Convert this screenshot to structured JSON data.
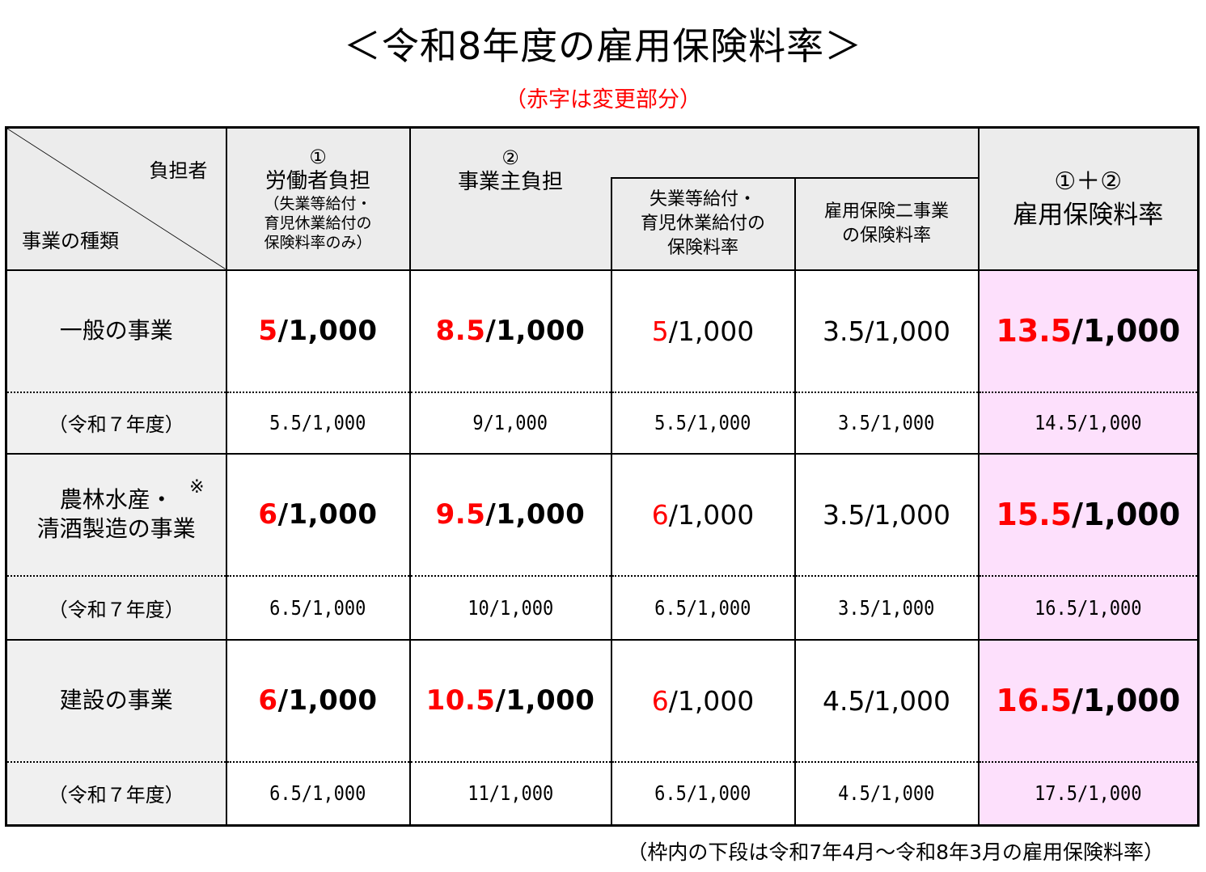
{
  "title": "＜令和8年度の雇用保険料率＞",
  "subtitle": "（赤字は変更部分）",
  "header": {
    "burden_label": "負担者",
    "kind_label": "事業の種類",
    "worker_num": "①",
    "worker_label": "労働者負担",
    "worker_note1": "（失業等給付・",
    "worker_note2": "育児休業給付の",
    "worker_note3": "保険料率のみ）",
    "employer_num": "②",
    "employer_label": "事業主負担",
    "sub1_line1": "失業等給付・",
    "sub1_line2": "育児休業給付の",
    "sub1_line3": "保険料率",
    "sub2_line1": "雇用保険二事業",
    "sub2_line2": "の保険料率",
    "total_num": "①＋②",
    "total_label": "雇用保険料率"
  },
  "rows": [
    {
      "name_lines": [
        "一般の事業"
      ],
      "prev_label": "（令和７年度）",
      "worker": "5/1,000",
      "employer": "8.5/1,000",
      "unemp": "5/1,000",
      "two_biz": "3.5/1,000",
      "total": "13.5/1,000",
      "prev_worker": "5.5/1,000",
      "prev_employer": "9/1,000",
      "prev_unemp": "5.5/1,000",
      "prev_two_biz": "3.5/1,000",
      "prev_total": "14.5/1,000"
    },
    {
      "name_lines": [
        "農林水産・",
        "清酒製造の事業"
      ],
      "star": "※",
      "prev_label": "（令和７年度）",
      "worker": "6/1,000",
      "employer": "9.5/1,000",
      "unemp": "6/1,000",
      "two_biz": "3.5/1,000",
      "total": "15.5/1,000",
      "prev_worker": "6.5/1,000",
      "prev_employer": "10/1,000",
      "prev_unemp": "6.5/1,000",
      "prev_two_biz": "3.5/1,000",
      "prev_total": "16.5/1,000"
    },
    {
      "name_lines": [
        "建設の事業"
      ],
      "prev_label": "（令和７年度）",
      "worker": "6/1,000",
      "employer": "10.5/1,000",
      "unemp": "6/1,000",
      "two_biz": "4.5/1,000",
      "total": "16.5/1,000",
      "prev_worker": "6.5/1,000",
      "prev_employer": "11/1,000",
      "prev_unemp": "6.5/1,000",
      "prev_two_biz": "4.5/1,000",
      "prev_total": "17.5/1,000"
    }
  ],
  "footnote": "（枠内の下段は令和7年4月～令和8年3月の雇用保険料率）",
  "colors": {
    "changed": "#ff0000",
    "total_bg": "#fde0fc",
    "header_bg": "#ececec"
  }
}
